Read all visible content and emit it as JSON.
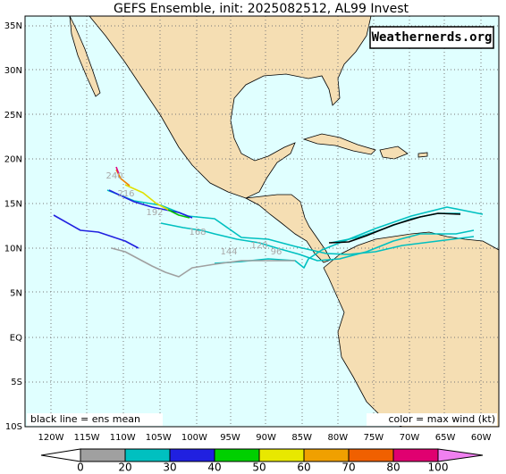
{
  "header": {
    "title": "GEFS Ensemble, init: 2025082512, AL99 Invest",
    "watermark": "Weathernerds.org"
  },
  "lat_labels": [
    "35N",
    "30N",
    "25N",
    "20N",
    "15N",
    "10N",
    "5N",
    "EQ",
    "5S",
    "10S"
  ],
  "lon_labels": [
    "120W",
    "115W",
    "110W",
    "105W",
    "100W",
    "95W",
    "90W",
    "85W",
    "80W",
    "75W",
    "70W",
    "65W",
    "60W"
  ],
  "notes": {
    "left": "black line = ens mean",
    "right": "color = max wind (kt)"
  },
  "track_labels": [
    "240",
    "216",
    "192",
    "168",
    "144",
    "120",
    "96"
  ],
  "colorbar": {
    "labels": [
      "0",
      "20",
      "30",
      "40",
      "50",
      "60",
      "70",
      "80",
      "100"
    ]
  }
}
